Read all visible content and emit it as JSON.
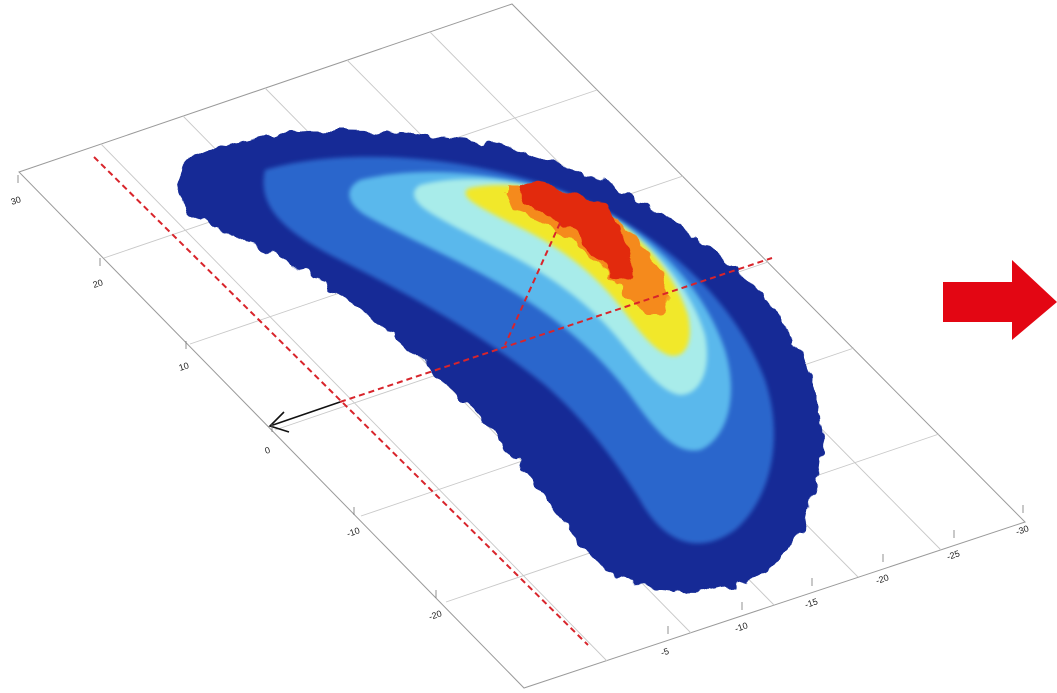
{
  "chart_data": {
    "type": "surface",
    "title": "",
    "xlabel": "",
    "ylabel": "",
    "zlabel": "",
    "x_ticks": [
      "30",
      "20",
      "10",
      "0",
      "-10",
      "-20"
    ],
    "y_ticks": [
      "-5",
      "-10",
      "-15",
      "-20",
      "-25",
      "-30"
    ],
    "xlim": [
      -30,
      30
    ],
    "ylim": [
      -35,
      0
    ],
    "grid": true,
    "colormap": [
      "#0b1f8a",
      "#1a53c8",
      "#3ba3e8",
      "#8fe0f0",
      "#f2ee2a",
      "#f7901c",
      "#e2240f"
    ],
    "surface_shape": "crescent",
    "peak_location": {
      "x": 12,
      "y": -16
    },
    "annotations": {
      "dashed_line_color": "#d8242b",
      "arrow_color": "#111111",
      "side_arrow_color": "#e30613"
    }
  }
}
